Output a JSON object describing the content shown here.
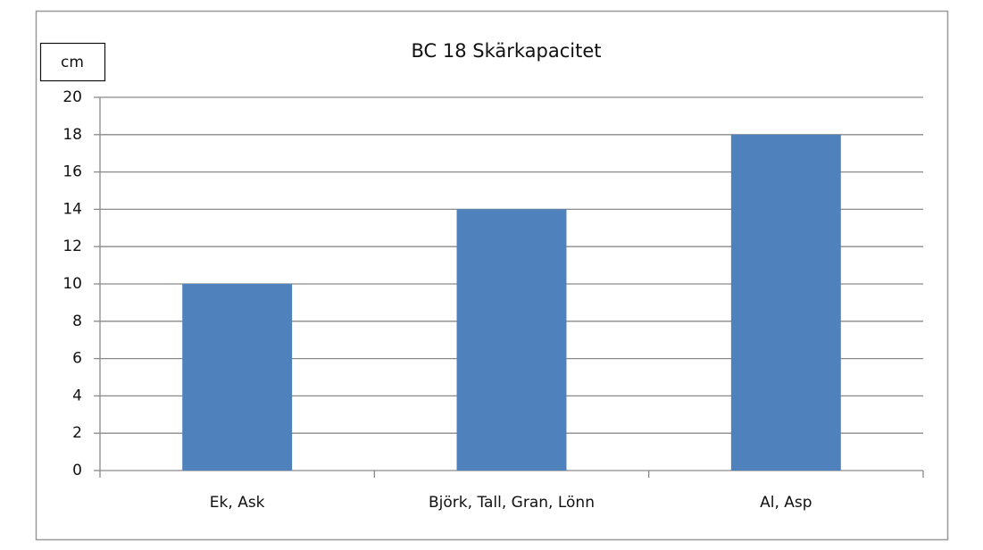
{
  "chart_data": {
    "type": "bar",
    "title": "BC 18 Skärkapacitet",
    "y_label": "cm",
    "categories": [
      "Ek, Ask",
      "Björk, Tall, Gran, Lönn",
      "Al, Asp"
    ],
    "values": [
      10,
      14,
      18
    ],
    "color": "#4f81bd",
    "ylim": [
      0,
      20
    ],
    "yticks": [
      0,
      2,
      4,
      6,
      8,
      10,
      12,
      14,
      16,
      18,
      20
    ],
    "grid": true
  }
}
